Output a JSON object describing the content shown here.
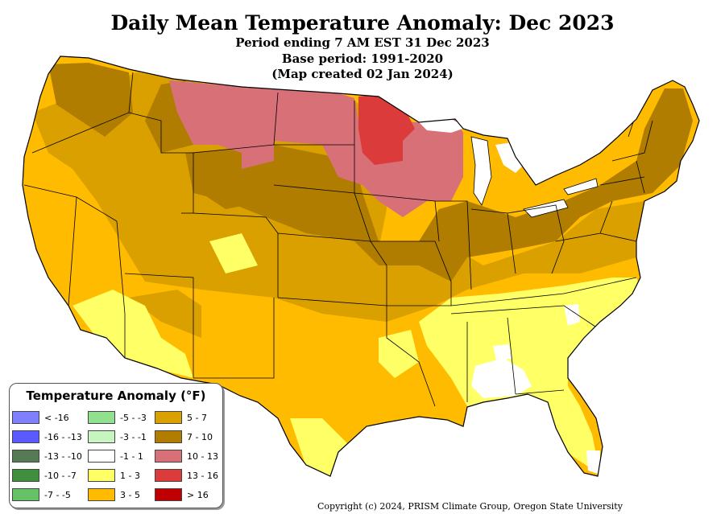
{
  "title": "Daily Mean Temperature Anomaly: Dec 2023",
  "subtitle_lines": [
    "Period ending 7 AM EST 31 Dec 2023",
    "Base period: 1991-2020",
    "(Map created 02 Jan 2024)"
  ],
  "legend": {
    "title": "Temperature Anomaly (°F)",
    "items": [
      {
        "label": "< -16",
        "color": "#8080ff"
      },
      {
        "label": "-16 - -13",
        "color": "#5a5aff"
      },
      {
        "label": "-13 - -10",
        "color": "#567a56"
      },
      {
        "label": "-10 - -7",
        "color": "#3f8f3f"
      },
      {
        "label": "-7 - -5",
        "color": "#66c266"
      },
      {
        "label": "-5 - -3",
        "color": "#90e090"
      },
      {
        "label": "-3 - -1",
        "color": "#c6f5c0"
      },
      {
        "label": "-1 - 1",
        "color": "#ffffff"
      },
      {
        "label": "1 - 3",
        "color": "#ffff66"
      },
      {
        "label": "3 - 5",
        "color": "#ffbb00"
      },
      {
        "label": "5 - 7",
        "color": "#d9a000"
      },
      {
        "label": "7 - 10",
        "color": "#b07d00"
      },
      {
        "label": "10 - 13",
        "color": "#d87078"
      },
      {
        "label": "13 - 16",
        "color": "#dc3b3b"
      },
      {
        "label": "> 16",
        "color": "#c00000"
      }
    ]
  },
  "copyright": "Copyright (c) 2024, PRISM Climate Group, Oregon State University"
}
